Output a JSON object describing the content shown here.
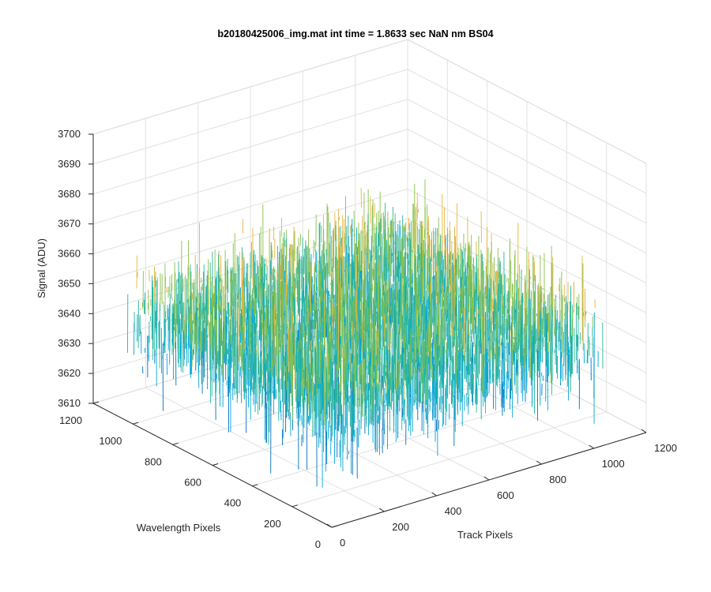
{
  "chart_data": {
    "type": "surface",
    "title": "b20180425006_img.mat int time = 1.8633 sec  NaN nm BS04",
    "xlabel": "Track Pixels",
    "ylabel": "Wavelength Pixels",
    "zlabel": "Signal (ADU)",
    "xlim": [
      0,
      1200
    ],
    "ylim": [
      0,
      1200
    ],
    "zlim": [
      3610,
      3700
    ],
    "xticks": [
      "0",
      "200",
      "400",
      "600",
      "800",
      "1000",
      "1200"
    ],
    "yticks": [
      "0",
      "200",
      "400",
      "600",
      "800",
      "1000",
      "1200"
    ],
    "zticks": [
      "3610",
      "3620",
      "3630",
      "3640",
      "3650",
      "3660",
      "3670",
      "3680",
      "3690",
      "3700"
    ],
    "grid": true,
    "colormap": "parula",
    "colors": [
      "#0072bd",
      "#00a6d6",
      "#27b5a0",
      "#8ac04a",
      "#e8b43c"
    ],
    "data_extent": {
      "track_pixels": [
        0,
        1024
      ],
      "wavelength_pixels": [
        0,
        1024
      ]
    },
    "signal_summary": {
      "mean": 3645,
      "min": 3615,
      "max": 3693
    }
  }
}
